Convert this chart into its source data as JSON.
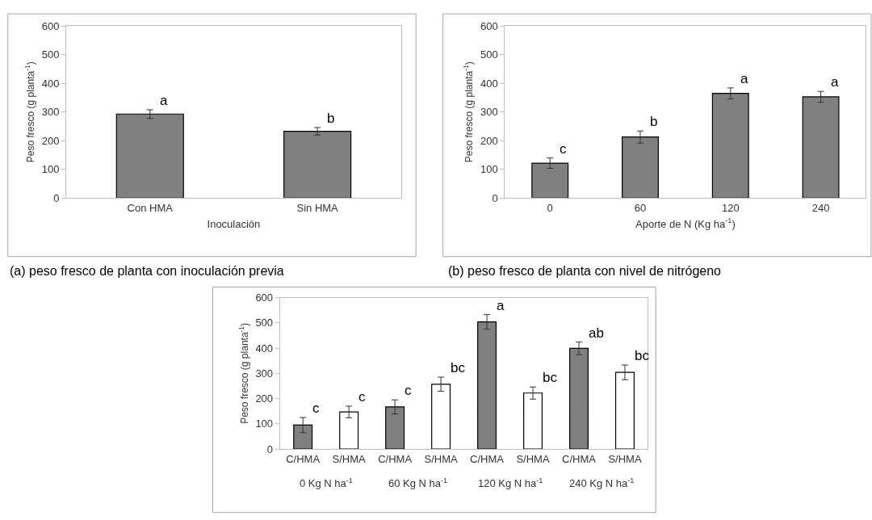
{
  "chart_data": [
    {
      "type": "bar",
      "categories": [
        "Con HMA",
        "Sin HMA"
      ],
      "values": [
        293,
        233
      ],
      "errors": [
        15,
        13
      ],
      "colors": [
        "#808080",
        "#808080"
      ],
      "value_labels": [
        "a",
        "b"
      ],
      "xlabel": "Inoculación",
      "ylabel": "Peso fresco (g planta$^{-1}$)",
      "ylim": [
        0,
        600
      ],
      "yticks": [
        0,
        100,
        200,
        300,
        400,
        500,
        600
      ],
      "grid": false,
      "annotations": [
        "(a) peso fresco de planta con inoculación previa"
      ]
    },
    {
      "type": "bar",
      "categories": [
        "0",
        "60",
        "120",
        "240"
      ],
      "values": [
        122,
        213,
        365,
        353
      ],
      "errors": [
        18,
        21,
        19,
        19
      ],
      "colors": [
        "#808080",
        "#808080",
        "#808080",
        "#808080"
      ],
      "value_labels": [
        "c",
        "b",
        "a",
        "a"
      ],
      "xlabel": "Aporte de N (Kg ha$^{-1}$)",
      "ylabel": "Peso fresco (g planta$^{-1}$)",
      "ylim": [
        0,
        600
      ],
      "yticks": [
        0,
        100,
        200,
        300,
        400,
        500,
        600
      ],
      "grid": false,
      "annotations": [
        "(b) peso fresco de planta con nivel de nitrógeno"
      ]
    },
    {
      "type": "bar",
      "categories": [
        "C/HMA",
        "S/HMA",
        "C/HMA",
        "S/HMA",
        "C/HMA",
        "S/HMA",
        "C/HMA",
        "S/HMA"
      ],
      "values": [
        95,
        147,
        167,
        257,
        504,
        222,
        399,
        304
      ],
      "errors": [
        30,
        23,
        28,
        28,
        29,
        24,
        25,
        29
      ],
      "colors": [
        "#808080",
        "#ffffff",
        "#808080",
        "#ffffff",
        "#808080",
        "#ffffff",
        "#808080",
        "#ffffff"
      ],
      "value_labels": [
        "c",
        "c",
        "c",
        "bc",
        "a",
        "bc",
        "ab",
        "bc"
      ],
      "ylabel": "Peso fresco (g planta$^{-1}$)",
      "ylim": [
        0,
        600
      ],
      "yticks": [
        0,
        100,
        200,
        300,
        400,
        500,
        600
      ],
      "grid": false,
      "annotations": [
        "0 Kg N ha$^{-1}$",
        "60 Kg N ha$^{-1}$",
        "120 Kg N ha$^{-1}$",
        "240 Kg N ha$^{-1}$"
      ]
    }
  ]
}
